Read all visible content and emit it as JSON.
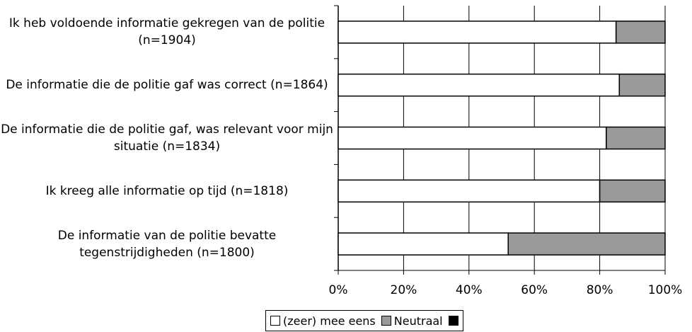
{
  "chart_data": {
    "type": "stacked_bar",
    "orientation": "horizontal",
    "categories": [
      "Ik heb voldoende informatie gekregen van de politie (n=1904)",
      "De informatie die de politie gaf was correct (n=1864)",
      "De informatie die de politie gaf, was relevant voor mijn situatie (n=1834)",
      "Ik kreeg alle informatie op tijd (n=1818)",
      "De informatie van de politie bevatte tegenstrijdigheden (n=1800)"
    ],
    "series": [
      {
        "name": "(zeer) mee eens",
        "color": "#ffffff",
        "values": [
          85,
          86,
          82,
          80,
          52
        ]
      },
      {
        "name": "Neutraal",
        "color": "#9a9a9a",
        "values": [
          15,
          14,
          18,
          20,
          48
        ]
      }
    ],
    "xlim": [
      0,
      100
    ],
    "xticks": [
      {
        "value": 0,
        "label": "0%"
      },
      {
        "value": 20,
        "label": "20%"
      },
      {
        "value": 40,
        "label": "40%"
      },
      {
        "value": 60,
        "label": "60%"
      },
      {
        "value": 80,
        "label": "80%"
      },
      {
        "value": 100,
        "label": "100%"
      }
    ],
    "grid": true
  }
}
